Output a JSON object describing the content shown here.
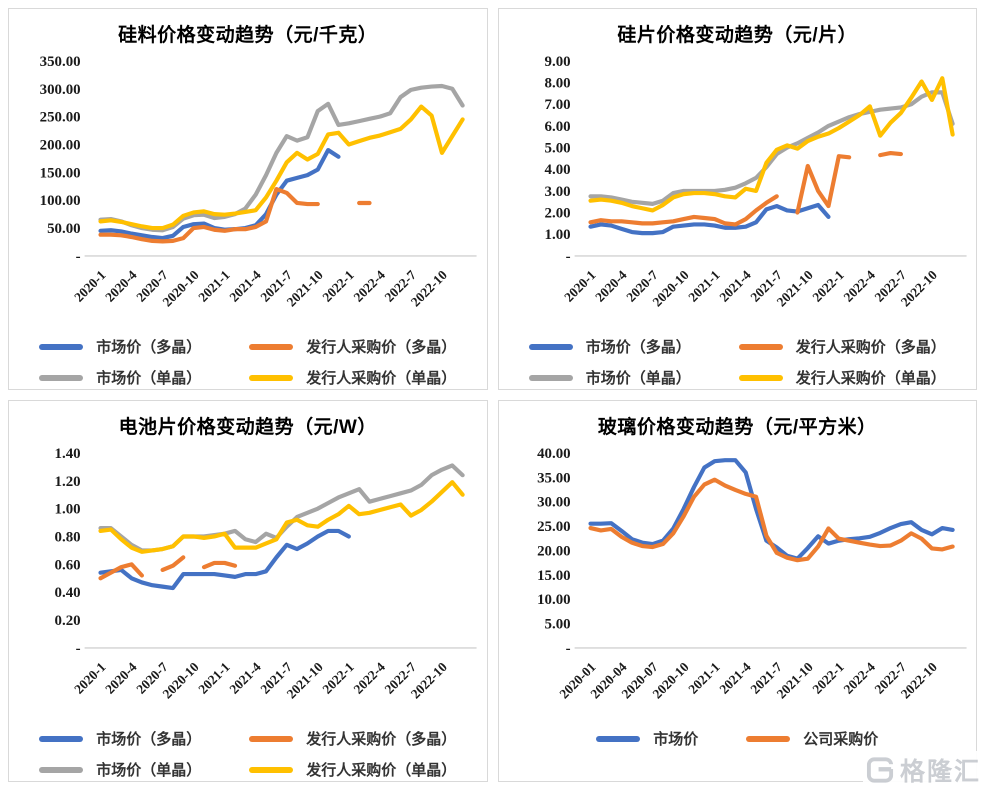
{
  "palette": {
    "blue": "#4472C4",
    "orange": "#ED7D31",
    "gray": "#A5A5A5",
    "yellow": "#FFC000",
    "axis_line": "#d9d9d9",
    "tick_text": "#1a1a1a",
    "legend_text": "#333333",
    "panel_border": "#d9d9d9",
    "watermark": "#c9ccd1"
  },
  "watermark": {
    "brand_text": "格隆汇",
    "icon": "gelonghui-g-logo"
  },
  "chart_data": [
    {
      "id": "silicon-material",
      "type": "line",
      "title": "硅料价格变动趋势（元/千克）",
      "y_max": 350,
      "months": 36,
      "y_labels": [
        "350.00",
        "300.00",
        "250.00",
        "200.00",
        "150.00",
        "100.00",
        "50.00",
        "-"
      ],
      "x_labels": [
        "2020-1",
        "2020-4",
        "2020-7",
        "2020-10",
        "2021-1",
        "2021-4",
        "2021-7",
        "2021-10",
        "2022-1",
        "2022-4",
        "2022-7",
        "2022-10"
      ],
      "legend_layout": "two-column",
      "series": [
        {
          "name": "市场价（多晶）",
          "color": "#4472C4",
          "values": [
            45,
            46,
            44,
            40,
            37,
            34,
            32,
            36,
            52,
            57,
            58,
            50,
            47,
            48,
            50,
            55,
            75,
            110,
            135,
            140,
            145,
            155,
            190,
            178,
            null,
            null,
            null,
            null,
            null,
            null,
            null,
            null,
            null,
            null,
            null,
            null
          ]
        },
        {
          "name": "发行人采购价（多晶）",
          "color": "#ED7D31",
          "values": [
            38,
            38,
            37,
            34,
            30,
            27,
            26,
            27,
            32,
            50,
            52,
            47,
            45,
            48,
            48,
            52,
            62,
            120,
            113,
            95,
            93,
            93,
            null,
            null,
            null,
            95,
            95,
            null,
            null,
            null,
            null,
            null,
            null,
            null,
            null,
            null
          ]
        },
        {
          "name": "市场价（单晶）",
          "color": "#A5A5A5",
          "values": [
            65,
            66,
            62,
            55,
            50,
            47,
            46,
            52,
            67,
            73,
            74,
            68,
            70,
            75,
            85,
            110,
            145,
            185,
            215,
            207,
            213,
            260,
            273,
            235,
            238,
            242,
            246,
            250,
            256,
            285,
            298,
            302,
            304,
            305,
            300,
            270
          ]
        },
        {
          "name": "发行人采购价（单晶）",
          "color": "#FFC000",
          "values": [
            62,
            64,
            61,
            57,
            53,
            50,
            50,
            56,
            72,
            78,
            80,
            75,
            74,
            76,
            79,
            82,
            105,
            135,
            168,
            185,
            173,
            183,
            218,
            221,
            200,
            206,
            212,
            216,
            222,
            228,
            245,
            268,
            252,
            185,
            215,
            245
          ]
        }
      ]
    },
    {
      "id": "silicon-wafer",
      "type": "line",
      "title": "硅片价格变动趋势（元/片）",
      "y_max": 9,
      "months": 36,
      "y_labels": [
        "9.00",
        "8.00",
        "7.00",
        "6.00",
        "5.00",
        "4.00",
        "3.00",
        "2.00",
        "1.00",
        "-"
      ],
      "x_labels": [
        "2020-1",
        "2020-4",
        "2020-7",
        "2020-10",
        "2021-1",
        "2021-4",
        "2021-7",
        "2021-10",
        "2022-1",
        "2022-4",
        "2022-7",
        "2022-10"
      ],
      "legend_layout": "two-column",
      "series": [
        {
          "name": "市场价（多晶）",
          "color": "#4472C4",
          "values": [
            1.35,
            1.45,
            1.4,
            1.25,
            1.1,
            1.05,
            1.05,
            1.1,
            1.35,
            1.4,
            1.45,
            1.45,
            1.4,
            1.3,
            1.3,
            1.35,
            1.55,
            2.15,
            2.3,
            2.1,
            2.05,
            2.2,
            2.35,
            1.8,
            null,
            null,
            null,
            null,
            null,
            null,
            null,
            null,
            null,
            null,
            null,
            null
          ]
        },
        {
          "name": "发行人采购价（多晶）",
          "color": "#ED7D31",
          "values": [
            1.55,
            1.65,
            1.6,
            1.6,
            1.55,
            1.5,
            1.5,
            1.55,
            1.6,
            1.7,
            1.8,
            1.75,
            1.7,
            1.5,
            1.45,
            1.7,
            2.1,
            2.45,
            2.75,
            null,
            2.0,
            4.15,
            3.0,
            2.3,
            4.6,
            4.55,
            null,
            null,
            4.65,
            4.75,
            4.7,
            null,
            null,
            null,
            null,
            null
          ]
        },
        {
          "name": "市场价（单晶）",
          "color": "#A5A5A5",
          "values": [
            2.75,
            2.75,
            2.7,
            2.6,
            2.5,
            2.45,
            2.4,
            2.55,
            2.9,
            3.0,
            3.0,
            3.0,
            3.0,
            3.05,
            3.15,
            3.35,
            3.6,
            4.1,
            4.7,
            5.0,
            5.2,
            5.45,
            5.7,
            6.0,
            6.2,
            6.4,
            6.55,
            6.65,
            6.75,
            6.8,
            6.85,
            7.0,
            7.35,
            7.55,
            7.55,
            6.1
          ]
        },
        {
          "name": "发行人采购价（单晶）",
          "color": "#FFC000",
          "values": [
            2.55,
            2.6,
            2.55,
            2.45,
            2.3,
            2.2,
            2.1,
            2.35,
            2.7,
            2.85,
            2.9,
            2.9,
            2.85,
            2.75,
            2.7,
            3.1,
            3.0,
            4.3,
            4.9,
            5.1,
            4.95,
            5.3,
            5.5,
            5.65,
            5.9,
            6.2,
            6.5,
            6.9,
            5.55,
            6.15,
            6.6,
            7.3,
            8.05,
            7.2,
            8.2,
            5.6
          ]
        }
      ]
    },
    {
      "id": "solar-cell",
      "type": "line",
      "title": "电池片价格变动趋势（元/W）",
      "y_max": 1.4,
      "months": 36,
      "y_labels": [
        "1.40",
        "1.20",
        "1.00",
        "0.80",
        "0.60",
        "0.40",
        "0.20",
        "-"
      ],
      "x_labels": [
        "2020-1",
        "2020-4",
        "2020-7",
        "2020-10",
        "2021-1",
        "2021-4",
        "2021-7",
        "2021-10",
        "2022-1",
        "2022-4",
        "2022-7",
        "2022-10"
      ],
      "legend_layout": "two-column",
      "series": [
        {
          "name": "市场价（多晶）",
          "color": "#4472C4",
          "values": [
            0.54,
            0.55,
            0.56,
            0.5,
            0.47,
            0.45,
            0.44,
            0.43,
            0.53,
            0.53,
            0.53,
            0.53,
            0.52,
            0.51,
            0.53,
            0.53,
            0.55,
            0.65,
            0.74,
            0.71,
            0.75,
            0.8,
            0.84,
            0.84,
            0.8,
            null,
            null,
            null,
            null,
            null,
            null,
            null,
            null,
            null,
            null,
            null
          ]
        },
        {
          "name": "发行人采购价（多晶）",
          "color": "#ED7D31",
          "values": [
            0.5,
            0.54,
            0.58,
            0.6,
            0.52,
            null,
            0.56,
            0.59,
            0.65,
            null,
            0.58,
            0.61,
            0.61,
            0.59,
            null,
            null,
            null,
            null,
            null,
            null,
            null,
            null,
            null,
            null,
            null,
            null,
            null,
            null,
            null,
            null,
            null,
            null,
            null,
            null,
            null,
            null
          ]
        },
        {
          "name": "市场价（单晶）",
          "color": "#A5A5A5",
          "values": [
            0.86,
            0.86,
            0.8,
            0.74,
            0.7,
            0.7,
            0.71,
            0.73,
            0.8,
            0.8,
            0.8,
            0.81,
            0.82,
            0.84,
            0.78,
            0.76,
            0.82,
            0.79,
            0.87,
            0.94,
            0.97,
            1.0,
            1.04,
            1.08,
            1.11,
            1.14,
            1.05,
            1.07,
            1.09,
            1.11,
            1.13,
            1.17,
            1.24,
            1.28,
            1.31,
            1.24
          ]
        },
        {
          "name": "发行人采购价（单晶）",
          "color": "#FFC000",
          "values": [
            0.84,
            0.85,
            0.78,
            0.72,
            0.69,
            0.7,
            0.71,
            0.73,
            0.8,
            0.8,
            0.79,
            0.8,
            0.82,
            0.72,
            0.72,
            0.72,
            0.75,
            0.78,
            0.9,
            0.92,
            0.88,
            0.87,
            0.92,
            0.96,
            1.02,
            0.96,
            0.97,
            0.99,
            1.01,
            1.03,
            0.95,
            0.99,
            1.05,
            1.12,
            1.19,
            1.1
          ]
        }
      ]
    },
    {
      "id": "glass",
      "type": "line",
      "title": "玻璃价格变动趋势（元/平方米）",
      "y_max": 40,
      "months": 36,
      "y_labels": [
        "40.00",
        "35.00",
        "30.00",
        "25.00",
        "20.00",
        "15.00",
        "10.00",
        "5.00",
        "-"
      ],
      "x_labels": [
        "2020-01",
        "2020-04",
        "2020-07",
        "2020-10",
        "2021-1",
        "2021-4",
        "2021-7",
        "2021-10",
        "2022-1",
        "2022-4",
        "2022-7",
        "2022-10"
      ],
      "legend_layout": "row",
      "series": [
        {
          "name": "市场价",
          "color": "#4472C4",
          "values": [
            25.5,
            25.5,
            25.6,
            24.0,
            22.3,
            21.6,
            21.3,
            22.0,
            24.5,
            28.5,
            33.0,
            37.0,
            38.3,
            38.5,
            38.5,
            36.0,
            28.5,
            22.0,
            20.6,
            18.9,
            18.3,
            20.5,
            22.9,
            21.4,
            22.0,
            22.3,
            22.5,
            22.8,
            23.6,
            24.6,
            25.4,
            25.8,
            24.2,
            23.3,
            24.6,
            24.2
          ]
        },
        {
          "name": "公司采购价",
          "color": "#ED7D31",
          "values": [
            24.6,
            24.1,
            24.4,
            22.8,
            21.6,
            20.9,
            20.7,
            21.3,
            23.5,
            27.0,
            31.0,
            33.5,
            34.5,
            33.3,
            32.4,
            31.6,
            31.0,
            23.0,
            19.5,
            18.5,
            18.0,
            18.3,
            20.8,
            24.5,
            22.4,
            22.0,
            21.6,
            21.2,
            20.9,
            21.0,
            22.0,
            23.5,
            22.4,
            20.4,
            20.2,
            20.8
          ]
        }
      ]
    }
  ]
}
